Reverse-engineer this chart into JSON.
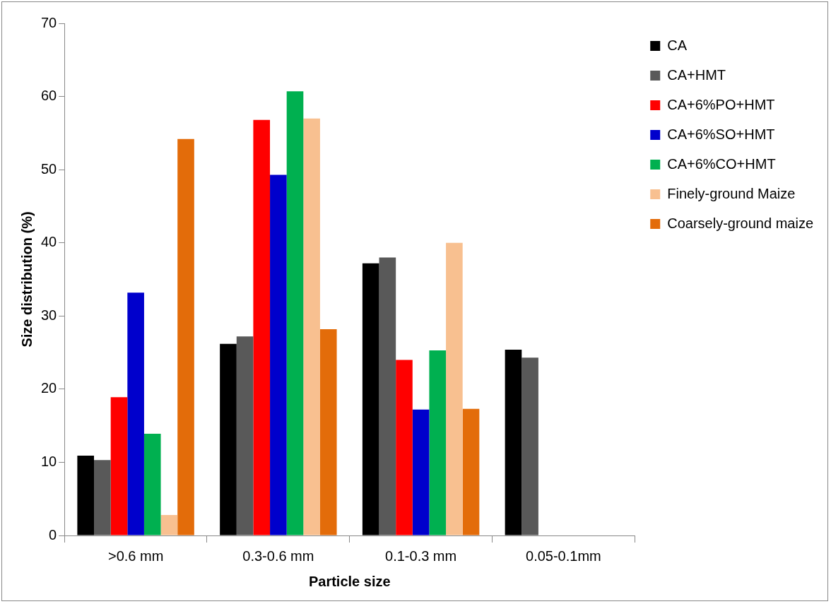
{
  "chart_data": {
    "type": "bar",
    "xlabel": "Particle size",
    "ylabel": "Size distribution (%)",
    "categories": [
      ">0.6 mm",
      "0.3-0.6 mm",
      "0.1-0.3 mm",
      "0.05-0.1mm"
    ],
    "series": [
      {
        "name": "CA",
        "color": "#000000",
        "values": [
          10.9,
          26.2,
          37.2,
          25.4
        ]
      },
      {
        "name": "CA+HMT",
        "color": "#595959",
        "values": [
          10.3,
          27.2,
          38.0,
          24.3
        ]
      },
      {
        "name": "CA+6%PO+HMT",
        "color": "#ff0000",
        "values": [
          18.9,
          56.8,
          24.0,
          0
        ]
      },
      {
        "name": "CA+6%SO+HMT",
        "color": "#0000cc",
        "values": [
          33.2,
          49.3,
          17.2,
          0
        ]
      },
      {
        "name": "CA+6%CO+HMT",
        "color": "#00b050",
        "values": [
          13.9,
          60.7,
          25.3,
          0
        ]
      },
      {
        "name": "Finely-ground Maize",
        "color": "#f8c090",
        "values": [
          2.8,
          57.0,
          40.0,
          0
        ]
      },
      {
        "name": "Coarsely-ground maize",
        "color": "#e36c0a",
        "values": [
          54.2,
          28.2,
          17.3,
          0
        ]
      }
    ],
    "ylim": [
      0,
      70
    ],
    "yticks": [
      0,
      10,
      20,
      30,
      40,
      50,
      60,
      70
    ],
    "grid": false,
    "legend": "top right"
  }
}
